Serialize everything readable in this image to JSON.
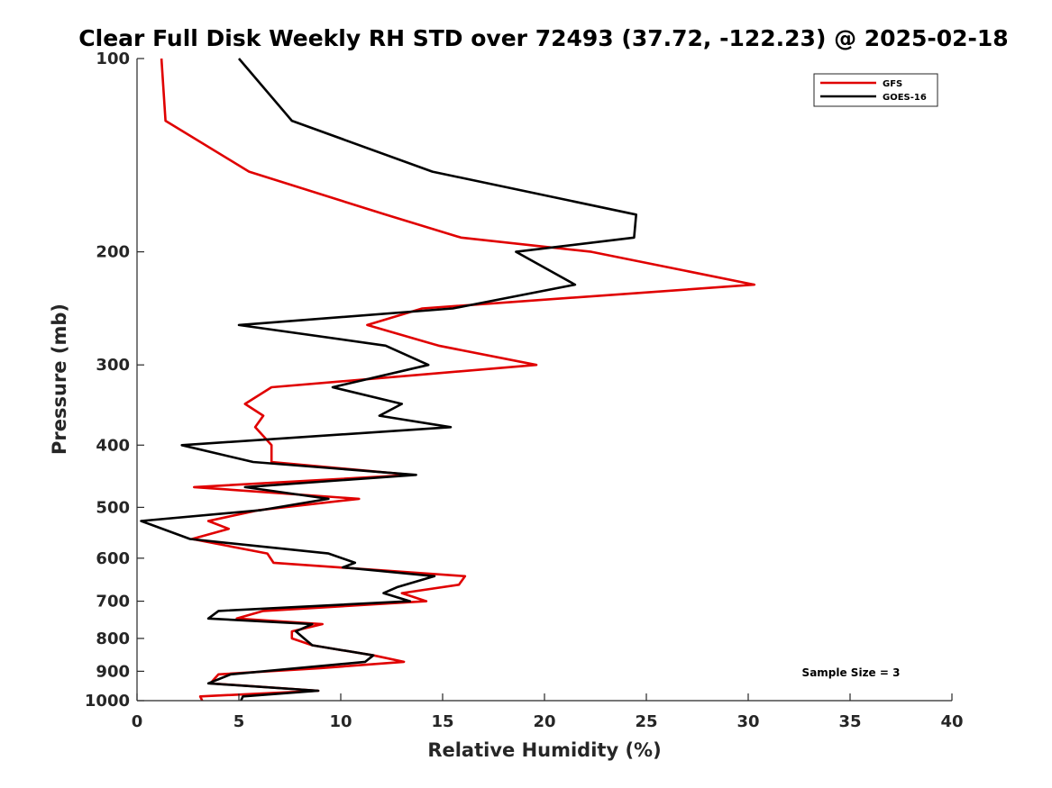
{
  "chart_data": {
    "type": "line",
    "title": "Clear Full Disk Weekly RH STD over 72493 (37.72, -122.23) @ 2025-02-18",
    "xlabel": "Relative Humidity (%)",
    "ylabel": "Pressure (mb)",
    "xlim": [
      0,
      40
    ],
    "ylim": [
      100,
      1000
    ],
    "y_scale": "log",
    "y_reversed": true,
    "xticks": [
      0,
      5,
      10,
      15,
      20,
      25,
      30,
      35,
      40
    ],
    "xtick_labels": [
      "0",
      "5",
      "10",
      "15",
      "20",
      "25",
      "30",
      "35",
      "40"
    ],
    "yticks": [
      100,
      200,
      300,
      400,
      500,
      600,
      700,
      800,
      900,
      1000
    ],
    "ytick_labels": [
      "100",
      "200",
      "300",
      "400",
      "500",
      "600",
      "700",
      "800",
      "900",
      "1000"
    ],
    "grid": false,
    "legend_placement": "top-right",
    "annotation": "Sample Size = 3",
    "series": [
      {
        "name": "GFS",
        "color": "#e00000",
        "points": [
          [
            1.2,
            100
          ],
          [
            1.4,
            125
          ],
          [
            5.5,
            150
          ],
          [
            12.2,
            175
          ],
          [
            15.9,
            190
          ],
          [
            22.3,
            200
          ],
          [
            30.3,
            225
          ],
          [
            14.0,
            245
          ],
          [
            11.3,
            260
          ],
          [
            14.8,
            280
          ],
          [
            19.6,
            300
          ],
          [
            6.6,
            325
          ],
          [
            5.3,
            345
          ],
          [
            6.2,
            360
          ],
          [
            5.8,
            375
          ],
          [
            6.6,
            400
          ],
          [
            6.6,
            425
          ],
          [
            13.5,
            445
          ],
          [
            2.8,
            465
          ],
          [
            10.9,
            485
          ],
          [
            6.0,
            505
          ],
          [
            3.5,
            525
          ],
          [
            4.5,
            540
          ],
          [
            2.7,
            560
          ],
          [
            6.4,
            590
          ],
          [
            6.7,
            610
          ],
          [
            16.1,
            640
          ],
          [
            15.8,
            660
          ],
          [
            13.0,
            680
          ],
          [
            14.2,
            700
          ],
          [
            6.2,
            725
          ],
          [
            4.9,
            745
          ],
          [
            9.1,
            760
          ],
          [
            7.6,
            780
          ],
          [
            7.6,
            800
          ],
          [
            8.6,
            820
          ],
          [
            11.6,
            850
          ],
          [
            13.1,
            870
          ],
          [
            9.0,
            890
          ],
          [
            4.0,
            910
          ],
          [
            3.6,
            940
          ],
          [
            8.9,
            965
          ],
          [
            3.1,
            985
          ],
          [
            3.2,
            1000
          ]
        ]
      },
      {
        "name": "GOES-16",
        "color": "#000000",
        "points": [
          [
            5.0,
            100
          ],
          [
            7.6,
            125
          ],
          [
            14.5,
            150
          ],
          [
            24.5,
            175
          ],
          [
            24.4,
            190
          ],
          [
            18.6,
            200
          ],
          [
            21.5,
            225
          ],
          [
            15.5,
            245
          ],
          [
            5.0,
            260
          ],
          [
            12.2,
            280
          ],
          [
            14.3,
            300
          ],
          [
            9.6,
            325
          ],
          [
            13.0,
            345
          ],
          [
            11.9,
            360
          ],
          [
            15.4,
            375
          ],
          [
            2.2,
            400
          ],
          [
            5.7,
            425
          ],
          [
            13.7,
            445
          ],
          [
            5.3,
            465
          ],
          [
            9.4,
            485
          ],
          [
            6.1,
            505
          ],
          [
            0.2,
            525
          ],
          [
            2.6,
            560
          ],
          [
            9.4,
            590
          ],
          [
            10.7,
            610
          ],
          [
            10.1,
            620
          ],
          [
            14.6,
            640
          ],
          [
            12.8,
            665
          ],
          [
            12.1,
            680
          ],
          [
            13.4,
            700
          ],
          [
            4.0,
            725
          ],
          [
            3.5,
            745
          ],
          [
            8.6,
            760
          ],
          [
            7.8,
            780
          ],
          [
            8.2,
            800
          ],
          [
            8.6,
            820
          ],
          [
            11.6,
            850
          ],
          [
            11.2,
            870
          ],
          [
            4.6,
            910
          ],
          [
            3.5,
            940
          ],
          [
            8.9,
            965
          ],
          [
            5.2,
            985
          ],
          [
            5.1,
            1000
          ]
        ]
      }
    ]
  }
}
